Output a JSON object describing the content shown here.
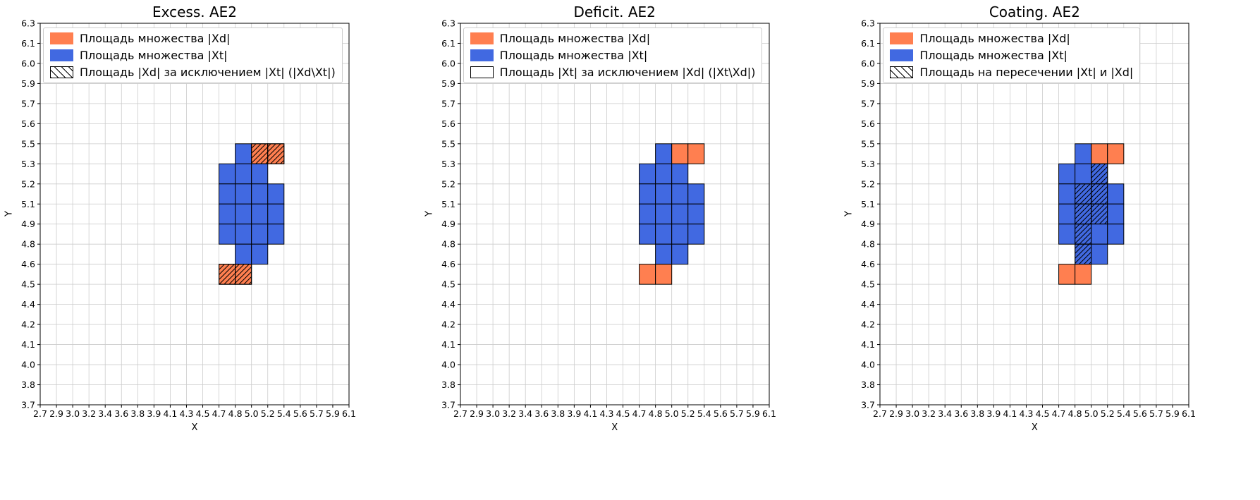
{
  "colors": {
    "blue": "#4169E1",
    "orange": "#FF7F50",
    "grid": "#cccccc",
    "spine": "#000000",
    "cell_edge": "#000000"
  },
  "chart_data": [
    {
      "type": "heatmap",
      "title": "Excess. AE2",
      "xlabel": "X",
      "ylabel": "Y",
      "grid": true,
      "legend_position": "upper left",
      "x_ticks": [
        "2.7",
        "2.9",
        "3.0",
        "3.2",
        "3.4",
        "3.6",
        "3.8",
        "3.9",
        "4.1",
        "4.3",
        "4.5",
        "4.7",
        "4.8",
        "5.0",
        "5.2",
        "5.4",
        "5.6",
        "5.7",
        "5.9",
        "6.1"
      ],
      "y_ticks": [
        "3.7",
        "3.8",
        "4.0",
        "4.1",
        "4.2",
        "4.4",
        "4.5",
        "4.6",
        "4.8",
        "4.9",
        "5.1",
        "5.2",
        "5.3",
        "5.5",
        "5.6",
        "5.7",
        "5.9",
        "6.0",
        "6.1",
        "6.3"
      ],
      "cells_meaning": "c,r are tick indices; a cell spans x_ticks[c]..x_ticks[c+1] by y_ticks[r]..y_ticks[r+1]",
      "legend": [
        {
          "label": "Площадь множества |Xd|",
          "swatch": "orange"
        },
        {
          "label": "Площадь множества  |Xt|",
          "swatch": "blue"
        },
        {
          "label": "Площадь |Xd| за исключением |Xt| (|Xd\\Xt|)",
          "swatch": "hatch"
        }
      ],
      "cells": [
        {
          "c": 12,
          "r": 12,
          "fill": "blue",
          "hatch": false
        },
        {
          "c": 13,
          "r": 12,
          "fill": "orange",
          "hatch": true
        },
        {
          "c": 14,
          "r": 12,
          "fill": "orange",
          "hatch": true
        },
        {
          "c": 11,
          "r": 11,
          "fill": "blue",
          "hatch": false
        },
        {
          "c": 12,
          "r": 11,
          "fill": "blue",
          "hatch": false
        },
        {
          "c": 13,
          "r": 11,
          "fill": "blue",
          "hatch": false
        },
        {
          "c": 11,
          "r": 10,
          "fill": "blue",
          "hatch": false
        },
        {
          "c": 12,
          "r": 10,
          "fill": "blue",
          "hatch": false
        },
        {
          "c": 13,
          "r": 10,
          "fill": "blue",
          "hatch": false
        },
        {
          "c": 14,
          "r": 10,
          "fill": "blue",
          "hatch": false
        },
        {
          "c": 11,
          "r": 9,
          "fill": "blue",
          "hatch": false
        },
        {
          "c": 12,
          "r": 9,
          "fill": "blue",
          "hatch": false
        },
        {
          "c": 13,
          "r": 9,
          "fill": "blue",
          "hatch": false
        },
        {
          "c": 14,
          "r": 9,
          "fill": "blue",
          "hatch": false
        },
        {
          "c": 11,
          "r": 8,
          "fill": "blue",
          "hatch": false
        },
        {
          "c": 12,
          "r": 8,
          "fill": "blue",
          "hatch": false
        },
        {
          "c": 13,
          "r": 8,
          "fill": "blue",
          "hatch": false
        },
        {
          "c": 14,
          "r": 8,
          "fill": "blue",
          "hatch": false
        },
        {
          "c": 12,
          "r": 7,
          "fill": "blue",
          "hatch": false
        },
        {
          "c": 13,
          "r": 7,
          "fill": "blue",
          "hatch": false
        },
        {
          "c": 11,
          "r": 6,
          "fill": "orange",
          "hatch": true
        },
        {
          "c": 12,
          "r": 6,
          "fill": "orange",
          "hatch": true
        }
      ]
    },
    {
      "type": "heatmap",
      "title": "Deficit. AE2",
      "xlabel": "X",
      "ylabel": "Y",
      "grid": true,
      "legend_position": "upper left",
      "x_ticks": [
        "2.7",
        "2.9",
        "3.0",
        "3.2",
        "3.4",
        "3.6",
        "3.8",
        "3.9",
        "4.1",
        "4.3",
        "4.5",
        "4.7",
        "4.8",
        "5.0",
        "5.2",
        "5.4",
        "5.6",
        "5.7",
        "5.9",
        "6.1"
      ],
      "y_ticks": [
        "3.7",
        "3.8",
        "4.0",
        "4.1",
        "4.2",
        "4.4",
        "4.5",
        "4.6",
        "4.8",
        "4.9",
        "5.1",
        "5.2",
        "5.3",
        "5.5",
        "5.6",
        "5.7",
        "5.9",
        "6.0",
        "6.1",
        "6.3"
      ],
      "cells_meaning": "c,r are tick indices; a cell spans x_ticks[c]..x_ticks[c+1] by y_ticks[r]..y_ticks[r+1]",
      "legend": [
        {
          "label": "Площадь множества |Xd|",
          "swatch": "orange"
        },
        {
          "label": "Площадь множества  |Xt|",
          "swatch": "blue"
        },
        {
          "label": "Площадь |Xt| за исключением |Xd| (|Xt\\Xd|)",
          "swatch": "plain"
        }
      ],
      "cells": [
        {
          "c": 12,
          "r": 12,
          "fill": "blue",
          "hatch": false
        },
        {
          "c": 13,
          "r": 12,
          "fill": "orange",
          "hatch": false
        },
        {
          "c": 14,
          "r": 12,
          "fill": "orange",
          "hatch": false
        },
        {
          "c": 11,
          "r": 11,
          "fill": "blue",
          "hatch": false
        },
        {
          "c": 12,
          "r": 11,
          "fill": "blue",
          "hatch": false
        },
        {
          "c": 13,
          "r": 11,
          "fill": "blue",
          "hatch": false
        },
        {
          "c": 11,
          "r": 10,
          "fill": "blue",
          "hatch": false
        },
        {
          "c": 12,
          "r": 10,
          "fill": "blue",
          "hatch": false
        },
        {
          "c": 13,
          "r": 10,
          "fill": "blue",
          "hatch": false
        },
        {
          "c": 14,
          "r": 10,
          "fill": "blue",
          "hatch": false
        },
        {
          "c": 11,
          "r": 9,
          "fill": "blue",
          "hatch": false
        },
        {
          "c": 12,
          "r": 9,
          "fill": "blue",
          "hatch": false
        },
        {
          "c": 13,
          "r": 9,
          "fill": "blue",
          "hatch": false
        },
        {
          "c": 14,
          "r": 9,
          "fill": "blue",
          "hatch": false
        },
        {
          "c": 11,
          "r": 8,
          "fill": "blue",
          "hatch": false
        },
        {
          "c": 12,
          "r": 8,
          "fill": "blue",
          "hatch": false
        },
        {
          "c": 13,
          "r": 8,
          "fill": "blue",
          "hatch": false
        },
        {
          "c": 14,
          "r": 8,
          "fill": "blue",
          "hatch": false
        },
        {
          "c": 12,
          "r": 7,
          "fill": "blue",
          "hatch": false
        },
        {
          "c": 13,
          "r": 7,
          "fill": "blue",
          "hatch": false
        },
        {
          "c": 11,
          "r": 6,
          "fill": "orange",
          "hatch": false
        },
        {
          "c": 12,
          "r": 6,
          "fill": "orange",
          "hatch": false
        }
      ]
    },
    {
      "type": "heatmap",
      "title": "Coating. AE2",
      "xlabel": "X",
      "ylabel": "Y",
      "grid": true,
      "legend_position": "upper left",
      "x_ticks": [
        "2.7",
        "2.9",
        "3.0",
        "3.2",
        "3.4",
        "3.6",
        "3.8",
        "3.9",
        "4.1",
        "4.3",
        "4.5",
        "4.7",
        "4.8",
        "5.0",
        "5.2",
        "5.4",
        "5.6",
        "5.7",
        "5.9",
        "6.1"
      ],
      "y_ticks": [
        "3.7",
        "3.8",
        "4.0",
        "4.1",
        "4.2",
        "4.4",
        "4.5",
        "4.6",
        "4.8",
        "4.9",
        "5.1",
        "5.2",
        "5.3",
        "5.5",
        "5.6",
        "5.7",
        "5.9",
        "6.0",
        "6.1",
        "6.3"
      ],
      "cells_meaning": "c,r are tick indices; a cell spans x_ticks[c]..x_ticks[c+1] by y_ticks[r]..y_ticks[r+1]",
      "legend": [
        {
          "label": "Площадь множества |Xd|",
          "swatch": "orange"
        },
        {
          "label": "Площадь множества  |Xt|",
          "swatch": "blue"
        },
        {
          "label": "Площадь на пересечении |Xt| и |Xd|",
          "swatch": "hatch"
        }
      ],
      "cells": [
        {
          "c": 12,
          "r": 12,
          "fill": "blue",
          "hatch": false
        },
        {
          "c": 13,
          "r": 12,
          "fill": "orange",
          "hatch": false
        },
        {
          "c": 14,
          "r": 12,
          "fill": "orange",
          "hatch": false
        },
        {
          "c": 11,
          "r": 11,
          "fill": "blue",
          "hatch": false
        },
        {
          "c": 12,
          "r": 11,
          "fill": "blue",
          "hatch": false
        },
        {
          "c": 13,
          "r": 11,
          "fill": "blue",
          "hatch": true
        },
        {
          "c": 11,
          "r": 10,
          "fill": "blue",
          "hatch": false
        },
        {
          "c": 12,
          "r": 10,
          "fill": "blue",
          "hatch": true
        },
        {
          "c": 13,
          "r": 10,
          "fill": "blue",
          "hatch": true
        },
        {
          "c": 14,
          "r": 10,
          "fill": "blue",
          "hatch": false
        },
        {
          "c": 11,
          "r": 9,
          "fill": "blue",
          "hatch": false
        },
        {
          "c": 12,
          "r": 9,
          "fill": "blue",
          "hatch": true
        },
        {
          "c": 13,
          "r": 9,
          "fill": "blue",
          "hatch": true
        },
        {
          "c": 14,
          "r": 9,
          "fill": "blue",
          "hatch": false
        },
        {
          "c": 11,
          "r": 8,
          "fill": "blue",
          "hatch": false
        },
        {
          "c": 12,
          "r": 8,
          "fill": "blue",
          "hatch": true
        },
        {
          "c": 13,
          "r": 8,
          "fill": "blue",
          "hatch": false
        },
        {
          "c": 14,
          "r": 8,
          "fill": "blue",
          "hatch": false
        },
        {
          "c": 12,
          "r": 7,
          "fill": "blue",
          "hatch": true
        },
        {
          "c": 13,
          "r": 7,
          "fill": "blue",
          "hatch": false
        },
        {
          "c": 11,
          "r": 6,
          "fill": "orange",
          "hatch": false
        },
        {
          "c": 12,
          "r": 6,
          "fill": "orange",
          "hatch": false
        }
      ]
    }
  ]
}
